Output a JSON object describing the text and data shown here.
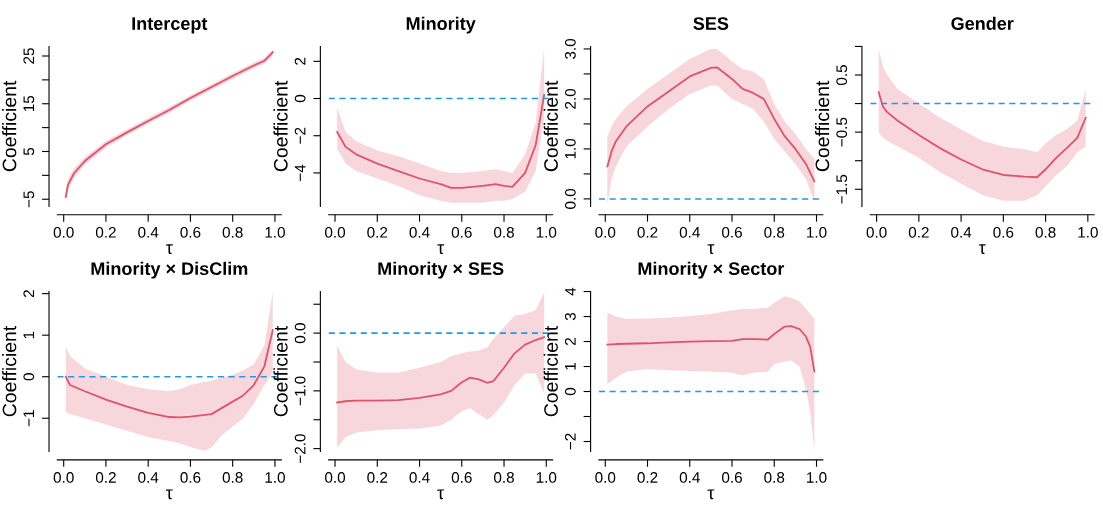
{
  "chart_data": [
    {
      "type": "line",
      "title": "Intercept",
      "xlabel": "τ",
      "ylabel": "Coefficient",
      "xlim": [
        -0.03,
        1.03
      ],
      "ylim": [
        -6.5,
        27
      ],
      "xticks": [
        {
          "value": 0,
          "label": "0.0"
        },
        {
          "value": 0.2,
          "label": "0.2"
        },
        {
          "value": 0.4,
          "label": "0.4"
        },
        {
          "value": 0.6,
          "label": "0.6"
        },
        {
          "value": 0.8,
          "label": "0.8"
        },
        {
          "value": 1,
          "label": "1.0"
        }
      ],
      "yticks": [
        -5,
        {
          "value": 0,
          "label": null
        },
        5,
        {
          "value": 10,
          "label": null
        },
        15,
        {
          "value": 20,
          "label": null
        },
        25
      ],
      "series": [
        {
          "color": "#df536b",
          "x": [
            0.01,
            0.02,
            0.05,
            0.1,
            0.2,
            0.3,
            0.4,
            0.5,
            0.6,
            0.7,
            0.8,
            0.9,
            0.95,
            0.99
          ],
          "values": [
            -4.5,
            -2,
            0.5,
            3,
            6.5,
            9,
            11.4,
            13.7,
            16.2,
            18.5,
            20.8,
            23,
            24,
            25.8
          ],
          "lower": [
            -5.5,
            -3.2,
            -0.5,
            2.2,
            5.8,
            8.4,
            10.8,
            13.1,
            15.6,
            17.9,
            20.2,
            22.4,
            23.4,
            25
          ],
          "upper": [
            -3.5,
            -0.8,
            1.5,
            3.8,
            7.2,
            9.6,
            12,
            14.3,
            16.8,
            19.1,
            21.4,
            23.6,
            24.6,
            26.4
          ]
        }
      ]
    },
    {
      "type": "line",
      "title": "Minority",
      "xlabel": "τ",
      "ylabel": "Coefficient",
      "xlim": [
        -0.03,
        1.03
      ],
      "ylim": [
        -5.8,
        2.8
      ],
      "xticks": [
        {
          "value": 0,
          "label": "0.0"
        },
        {
          "value": 0.2,
          "label": "0.2"
        },
        {
          "value": 0.4,
          "label": "0.4"
        },
        {
          "value": 0.6,
          "label": "0.6"
        },
        {
          "value": 0.8,
          "label": "0.8"
        },
        {
          "value": 1,
          "label": "1.0"
        }
      ],
      "yticks": [
        -4,
        -2,
        0,
        2
      ],
      "ref_lines": [
        {
          "axis": "y",
          "value": 0,
          "color": "#2297e6",
          "line_style": "dashed"
        }
      ],
      "series": [
        {
          "color": "#df536b",
          "x": [
            0.01,
            0.05,
            0.1,
            0.2,
            0.3,
            0.4,
            0.5,
            0.55,
            0.6,
            0.7,
            0.76,
            0.8,
            0.84,
            0.9,
            0.95,
            0.99
          ],
          "values": [
            -1.8,
            -2.6,
            -3.0,
            -3.5,
            -3.9,
            -4.3,
            -4.6,
            -4.8,
            -4.8,
            -4.7,
            -4.6,
            -4.7,
            -4.75,
            -4.0,
            -2.5,
            0.2
          ],
          "lower": [
            -2.7,
            -3.5,
            -3.9,
            -4.3,
            -4.7,
            -5.2,
            -5.5,
            -5.6,
            -5.6,
            -5.6,
            -5.5,
            -5.5,
            -5.4,
            -5.0,
            -3.9,
            -1.0
          ],
          "upper": [
            -0.5,
            -1.8,
            -2.3,
            -2.8,
            -3.1,
            -3.5,
            -3.9,
            -4.0,
            -4.0,
            -3.9,
            -3.8,
            -3.9,
            -4.0,
            -3.0,
            -1.3,
            2.7
          ]
        }
      ]
    },
    {
      "type": "line",
      "title": "SES",
      "xlabel": "τ",
      "ylabel": "Coefficient",
      "xlim": [
        -0.03,
        1.03
      ],
      "ylim": [
        -0.15,
        3.05
      ],
      "xticks": [
        {
          "value": 0,
          "label": "0.0"
        },
        {
          "value": 0.2,
          "label": "0.2"
        },
        {
          "value": 0.4,
          "label": "0.4"
        },
        {
          "value": 0.6,
          "label": "0.6"
        },
        {
          "value": 0.8,
          "label": "0.8"
        },
        {
          "value": 1,
          "label": "1.0"
        }
      ],
      "yticks": [
        {
          "value": 0,
          "label": "0.0"
        },
        {
          "value": 0.5,
          "label": null
        },
        {
          "value": 1,
          "label": "1.0"
        },
        {
          "value": 1.5,
          "label": null
        },
        {
          "value": 2,
          "label": "2.0"
        },
        {
          "value": 2.5,
          "label": null
        },
        {
          "value": 3,
          "label": "3.0"
        }
      ],
      "ref_lines": [
        {
          "axis": "y",
          "value": 0,
          "color": "#2297e6",
          "line_style": "dashed"
        }
      ],
      "series": [
        {
          "color": "#df536b",
          "x": [
            0.01,
            0.03,
            0.05,
            0.1,
            0.2,
            0.3,
            0.4,
            0.5,
            0.53,
            0.6,
            0.65,
            0.7,
            0.75,
            0.8,
            0.85,
            0.9,
            0.95,
            0.99
          ],
          "values": [
            0.65,
            0.95,
            1.15,
            1.45,
            1.85,
            2.15,
            2.45,
            2.62,
            2.63,
            2.4,
            2.2,
            2.12,
            2.0,
            1.6,
            1.25,
            1.0,
            0.7,
            0.35
          ],
          "lower": [
            -0.1,
            0.4,
            0.65,
            1.05,
            1.45,
            1.8,
            2.1,
            2.27,
            2.27,
            2.0,
            1.9,
            1.8,
            1.55,
            1.2,
            0.95,
            0.7,
            0.4,
            -0.05
          ],
          "upper": [
            1.25,
            1.45,
            1.6,
            1.85,
            2.2,
            2.5,
            2.8,
            3.0,
            3.0,
            2.75,
            2.6,
            2.55,
            2.4,
            1.9,
            1.55,
            1.3,
            1.0,
            0.8
          ]
        }
      ]
    },
    {
      "type": "line",
      "title": "Gender",
      "xlabel": "τ",
      "ylabel": "Coefficient",
      "xlim": [
        -0.03,
        1.03
      ],
      "ylim": [
        -1.8,
        1.0
      ],
      "xticks": [
        {
          "value": 0,
          "label": "0.0"
        },
        {
          "value": 0.2,
          "label": "0.2"
        },
        {
          "value": 0.4,
          "label": "0.4"
        },
        {
          "value": 0.6,
          "label": "0.6"
        },
        {
          "value": 0.8,
          "label": "0.8"
        },
        {
          "value": 1,
          "label": "1.0"
        }
      ],
      "yticks": [
        -1.5,
        {
          "value": -1,
          "label": null
        },
        -0.5,
        {
          "value": 0,
          "label": null
        },
        0.5,
        {
          "value": 1,
          "label": null
        }
      ],
      "ref_lines": [
        {
          "axis": "y",
          "value": 0,
          "color": "#2297e6",
          "line_style": "dashed"
        }
      ],
      "series": [
        {
          "color": "#df536b",
          "x": [
            0.01,
            0.03,
            0.05,
            0.1,
            0.2,
            0.3,
            0.4,
            0.5,
            0.6,
            0.7,
            0.76,
            0.8,
            0.85,
            0.9,
            0.95,
            0.99
          ],
          "values": [
            0.2,
            -0.05,
            -0.15,
            -0.3,
            -0.55,
            -0.78,
            -0.98,
            -1.15,
            -1.25,
            -1.28,
            -1.29,
            -1.15,
            -0.95,
            -0.78,
            -0.6,
            -0.25
          ],
          "lower": [
            -0.5,
            -0.6,
            -0.65,
            -0.75,
            -0.95,
            -1.2,
            -1.4,
            -1.6,
            -1.7,
            -1.7,
            -1.6,
            -1.45,
            -1.25,
            -1.1,
            -0.85,
            -0.75
          ],
          "upper": [
            0.95,
            0.65,
            0.5,
            0.25,
            0.0,
            -0.25,
            -0.45,
            -0.65,
            -0.75,
            -0.8,
            -0.85,
            -0.7,
            -0.55,
            -0.45,
            -0.3,
            0.25
          ]
        }
      ]
    },
    {
      "type": "line",
      "title": "Minority × DisClim",
      "xlabel": "τ",
      "ylabel": "Coefficient",
      "xlim": [
        -0.03,
        1.03
      ],
      "ylim": [
        -1.8,
        2.05
      ],
      "xticks": [
        {
          "value": 0,
          "label": "0.0"
        },
        {
          "value": 0.2,
          "label": "0.2"
        },
        {
          "value": 0.4,
          "label": "0.4"
        },
        {
          "value": 0.6,
          "label": "0.6"
        },
        {
          "value": 0.8,
          "label": "0.8"
        },
        {
          "value": 1,
          "label": "1.0"
        }
      ],
      "yticks": [
        -1,
        0,
        1,
        2
      ],
      "ref_lines": [
        {
          "axis": "y",
          "value": 0,
          "color": "#2297e6",
          "line_style": "dashed"
        }
      ],
      "series": [
        {
          "color": "#df536b",
          "x": [
            0.01,
            0.03,
            0.1,
            0.2,
            0.3,
            0.4,
            0.5,
            0.55,
            0.6,
            0.67,
            0.7,
            0.75,
            0.8,
            0.85,
            0.9,
            0.95,
            0.99
          ],
          "values": [
            0.0,
            -0.2,
            -0.35,
            -0.55,
            -0.72,
            -0.87,
            -0.97,
            -0.98,
            -0.96,
            -0.92,
            -0.9,
            -0.75,
            -0.6,
            -0.45,
            -0.2,
            0.25,
            1.12
          ],
          "lower": [
            -0.85,
            -0.9,
            -1.0,
            -1.15,
            -1.3,
            -1.45,
            -1.55,
            -1.6,
            -1.7,
            -1.78,
            -1.7,
            -1.4,
            -1.2,
            -1.0,
            -0.65,
            -0.2,
            0.1
          ],
          "upper": [
            0.72,
            0.5,
            0.2,
            0.0,
            -0.2,
            -0.3,
            -0.35,
            -0.3,
            -0.2,
            -0.12,
            -0.1,
            -0.02,
            0.05,
            0.15,
            0.3,
            0.75,
            2.05
          ]
        }
      ]
    },
    {
      "type": "line",
      "title": "Minority × SES",
      "xlabel": "τ",
      "ylabel": "Coefficient",
      "xlim": [
        -0.03,
        1.03
      ],
      "ylim": [
        -2.05,
        0.72
      ],
      "xticks": [
        {
          "value": 0,
          "label": "0.0"
        },
        {
          "value": 0.2,
          "label": "0.2"
        },
        {
          "value": 0.4,
          "label": "0.4"
        },
        {
          "value": 0.6,
          "label": "0.6"
        },
        {
          "value": 0.8,
          "label": "0.8"
        },
        {
          "value": 1,
          "label": "1.0"
        }
      ],
      "yticks": [
        {
          "value": -2,
          "label": "−2.0"
        },
        {
          "value": -1.5,
          "label": null
        },
        {
          "value": -1,
          "label": "−1.0"
        },
        {
          "value": -0.5,
          "label": null
        },
        {
          "value": 0,
          "label": "0.0"
        },
        {
          "value": 0.5,
          "label": null
        }
      ],
      "ref_lines": [
        {
          "axis": "y",
          "value": 0,
          "color": "#2297e6",
          "line_style": "dashed"
        }
      ],
      "series": [
        {
          "color": "#df536b",
          "x": [
            0.01,
            0.05,
            0.1,
            0.2,
            0.3,
            0.4,
            0.5,
            0.55,
            0.6,
            0.64,
            0.68,
            0.72,
            0.75,
            0.8,
            0.85,
            0.9,
            0.95,
            0.99
          ],
          "values": [
            -1.2,
            -1.18,
            -1.17,
            -1.17,
            -1.16,
            -1.12,
            -1.06,
            -1.0,
            -0.85,
            -0.77,
            -0.8,
            -0.86,
            -0.83,
            -0.6,
            -0.35,
            -0.2,
            -0.12,
            -0.07
          ],
          "lower": [
            -1.98,
            -1.8,
            -1.72,
            -1.68,
            -1.66,
            -1.65,
            -1.6,
            -1.5,
            -1.35,
            -1.3,
            -1.4,
            -1.5,
            -1.42,
            -1.2,
            -0.9,
            -0.7,
            -0.7,
            -1.05
          ],
          "upper": [
            -0.22,
            -0.5,
            -0.63,
            -0.68,
            -0.68,
            -0.6,
            -0.5,
            -0.4,
            -0.35,
            -0.32,
            -0.3,
            -0.25,
            -0.1,
            0.1,
            0.3,
            0.33,
            0.4,
            0.7
          ]
        }
      ]
    },
    {
      "type": "line",
      "title": "Minority × Sector",
      "xlabel": "τ",
      "ylabel": "Coefficient",
      "xlim": [
        -0.03,
        1.03
      ],
      "ylim": [
        -2.4,
        4.0
      ],
      "xticks": [
        {
          "value": 0,
          "label": "0.0"
        },
        {
          "value": 0.2,
          "label": "0.2"
        },
        {
          "value": 0.4,
          "label": "0.4"
        },
        {
          "value": 0.6,
          "label": "0.6"
        },
        {
          "value": 0.8,
          "label": "0.8"
        },
        {
          "value": 1,
          "label": "1.0"
        }
      ],
      "yticks": [
        -2,
        {
          "value": -1,
          "label": null
        },
        0,
        1,
        2,
        3,
        4
      ],
      "ref_lines": [
        {
          "axis": "y",
          "value": 0,
          "color": "#2297e6",
          "line_style": "dashed"
        }
      ],
      "series": [
        {
          "color": "#df536b",
          "x": [
            0.01,
            0.05,
            0.1,
            0.2,
            0.3,
            0.4,
            0.5,
            0.6,
            0.65,
            0.7,
            0.77,
            0.8,
            0.85,
            0.88,
            0.92,
            0.95,
            0.97,
            0.99
          ],
          "values": [
            1.88,
            1.9,
            1.91,
            1.93,
            1.97,
            2.0,
            2.02,
            2.03,
            2.1,
            2.1,
            2.08,
            2.3,
            2.6,
            2.62,
            2.5,
            2.2,
            1.8,
            0.8
          ],
          "lower": [
            0.3,
            0.55,
            0.8,
            0.9,
            0.85,
            0.82,
            0.8,
            0.75,
            0.65,
            0.75,
            0.8,
            1.1,
            1.2,
            1.25,
            1.0,
            0.1,
            -0.8,
            -2.4
          ],
          "upper": [
            3.15,
            3.0,
            2.9,
            2.92,
            2.95,
            3.02,
            3.1,
            3.25,
            3.3,
            3.3,
            3.35,
            3.55,
            3.8,
            3.75,
            3.6,
            3.3,
            3.1,
            2.9
          ]
        }
      ]
    }
  ]
}
